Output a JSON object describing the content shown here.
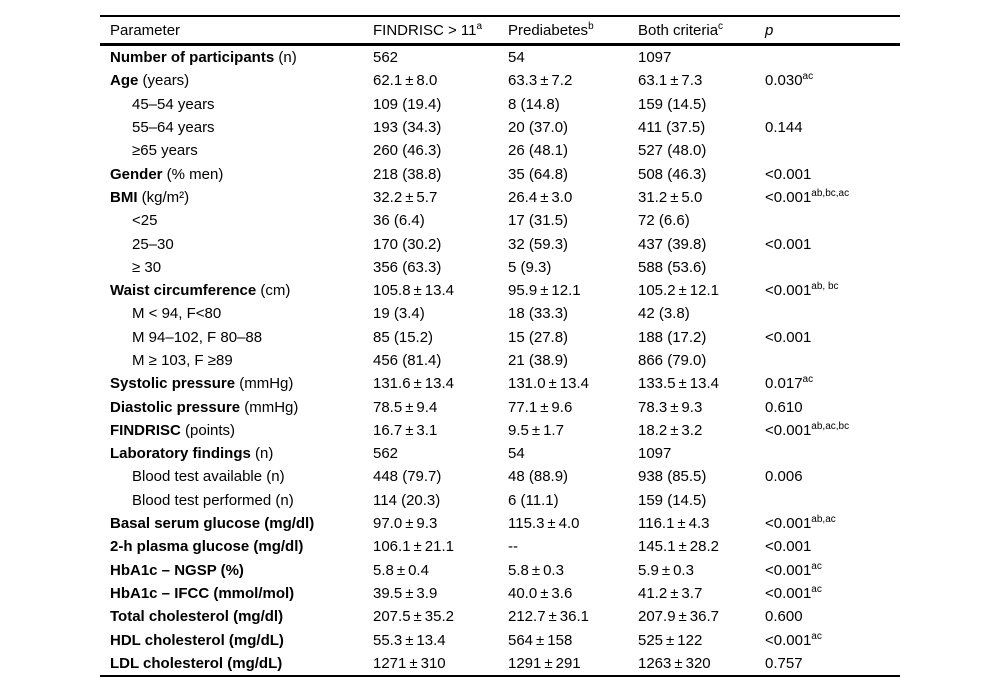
{
  "table": {
    "headers": [
      {
        "label": "Parameter",
        "sup": ""
      },
      {
        "label": "FINDRISC > 11",
        "sup": "a"
      },
      {
        "label": "Prediabetes",
        "sup": "b"
      },
      {
        "label": "Both criteria",
        "sup": "c"
      },
      {
        "label": "p",
        "sup": ""
      }
    ],
    "rows": [
      {
        "label_bold": "Number of participants",
        "label_rest": " (n)",
        "indent": false,
        "values": [
          "562",
          "54",
          "1097"
        ],
        "p": "",
        "p_sup": ""
      },
      {
        "label_bold": "Age",
        "label_rest": " (years)",
        "indent": false,
        "values": [
          "62.1 ± 8.0",
          "63.3 ± 7.2",
          "63.1 ± 7.3"
        ],
        "p": "0.030",
        "p_sup": "ac"
      },
      {
        "label_bold": "",
        "label_rest": "45–54 years",
        "indent": true,
        "values": [
          "109 (19.4)",
          "8 (14.8)",
          "159 (14.5)"
        ],
        "p": "",
        "p_sup": ""
      },
      {
        "label_bold": "",
        "label_rest": "55–64 years",
        "indent": true,
        "values": [
          "193 (34.3)",
          "20 (37.0)",
          "411 (37.5)"
        ],
        "p": "0.144",
        "p_sup": ""
      },
      {
        "label_bold": "",
        "label_rest": "≥65 years",
        "indent": true,
        "values": [
          "260 (46.3)",
          "26 (48.1)",
          "527 (48.0)"
        ],
        "p": "",
        "p_sup": ""
      },
      {
        "label_bold": "Gender",
        "label_rest": " (% men)",
        "indent": false,
        "values": [
          "218 (38.8)",
          "35 (64.8)",
          "508 (46.3)"
        ],
        "p": "<0.001",
        "p_sup": ""
      },
      {
        "label_bold": "BMI",
        "label_rest": " (kg/m²)",
        "indent": false,
        "values": [
          "32.2 ± 5.7",
          "26.4 ± 3.0",
          "31.2 ± 5.0"
        ],
        "p": "<0.001",
        "p_sup": "ab,bc,ac"
      },
      {
        "label_bold": "",
        "label_rest": "<25",
        "indent": true,
        "values": [
          "36 (6.4)",
          "17 (31.5)",
          "72 (6.6)"
        ],
        "p": "",
        "p_sup": ""
      },
      {
        "label_bold": "",
        "label_rest": "25–30",
        "indent": true,
        "values": [
          "170 (30.2)",
          "32 (59.3)",
          "437 (39.8)"
        ],
        "p": "<0.001",
        "p_sup": ""
      },
      {
        "label_bold": "",
        "label_rest": "≥ 30",
        "indent": true,
        "values": [
          "356 (63.3)",
          "5 (9.3)",
          "588 (53.6)"
        ],
        "p": "",
        "p_sup": ""
      },
      {
        "label_bold": "Waist circumference",
        "label_rest": " (cm)",
        "indent": false,
        "values": [
          "105.8 ± 13.4",
          "95.9 ± 12.1",
          "105.2 ± 12.1"
        ],
        "p": "<0.001",
        "p_sup": "ab, bc"
      },
      {
        "label_bold": "",
        "label_rest": "M < 94, F<80",
        "indent": true,
        "values": [
          "19 (3.4)",
          "18 (33.3)",
          "42 (3.8)"
        ],
        "p": "",
        "p_sup": ""
      },
      {
        "label_bold": "",
        "label_rest": "M 94–102, F 80–88",
        "indent": true,
        "values": [
          "85 (15.2)",
          "15 (27.8)",
          "188 (17.2)"
        ],
        "p": "<0.001",
        "p_sup": ""
      },
      {
        "label_bold": "",
        "label_rest": "M ≥ 103, F ≥89",
        "indent": true,
        "values": [
          "456 (81.4)",
          "21 (38.9)",
          "866 (79.0)"
        ],
        "p": "",
        "p_sup": ""
      },
      {
        "label_bold": "Systolic pressure",
        "label_rest": " (mmHg)",
        "indent": false,
        "values": [
          "131.6 ± 13.4",
          "131.0 ± 13.4",
          "133.5 ± 13.4"
        ],
        "p": "0.017",
        "p_sup": "ac"
      },
      {
        "label_bold": "Diastolic pressure",
        "label_rest": " (mmHg)",
        "indent": false,
        "values": [
          "78.5 ± 9.4",
          "77.1 ± 9.6",
          "78.3 ± 9.3"
        ],
        "p": "0.610",
        "p_sup": ""
      },
      {
        "label_bold": "FINDRISC",
        "label_rest": " (points)",
        "indent": false,
        "values": [
          "16.7 ± 3.1",
          "9.5 ± 1.7",
          "18.2 ± 3.2"
        ],
        "p": "<0.001",
        "p_sup": "ab,ac,bc"
      },
      {
        "label_bold": "Laboratory findings",
        "label_rest": " (n)",
        "indent": false,
        "values": [
          "562",
          "54",
          "1097"
        ],
        "p": "",
        "p_sup": ""
      },
      {
        "label_bold": "",
        "label_rest": "Blood test available (n)",
        "indent": true,
        "values": [
          "448 (79.7)",
          "48 (88.9)",
          "938 (85.5)"
        ],
        "p": "0.006",
        "p_sup": ""
      },
      {
        "label_bold": "",
        "label_rest": "Blood test performed (n)",
        "indent": true,
        "values": [
          "114 (20.3)",
          "6 (11.1)",
          "159 (14.5)"
        ],
        "p": "",
        "p_sup": ""
      },
      {
        "label_bold": "Basal serum glucose (mg/dl)",
        "label_rest": "",
        "indent": false,
        "values": [
          "97.0 ± 9.3",
          "115.3 ± 4.0",
          "116.1 ± 4.3"
        ],
        "p": "<0.001",
        "p_sup": "ab,ac"
      },
      {
        "label_bold": "2-h plasma glucose (mg/dl)",
        "label_rest": "",
        "indent": false,
        "values": [
          "106.1 ± 21.1",
          "--",
          "145.1 ± 28.2"
        ],
        "p": "<0.001",
        "p_sup": ""
      },
      {
        "label_bold": "HbA1c – NGSP (%)",
        "label_rest": "",
        "indent": false,
        "values": [
          "5.8 ± 0.4",
          "5.8 ± 0.3",
          "5.9 ± 0.3"
        ],
        "p": "<0.001",
        "p_sup": "ac"
      },
      {
        "label_bold": "HbA1c – IFCC (mmol/mol)",
        "label_rest": "",
        "indent": false,
        "values": [
          "39.5 ± 3.9",
          "40.0 ± 3.6",
          "41.2 ± 3.7"
        ],
        "p": "<0.001",
        "p_sup": "ac"
      },
      {
        "label_bold": "Total cholesterol (mg/dl)",
        "label_rest": "",
        "indent": false,
        "values": [
          "207.5 ± 35.2",
          "212.7 ± 36.1",
          "207.9 ± 36.7"
        ],
        "p": "0.600",
        "p_sup": ""
      },
      {
        "label_bold": "HDL cholesterol (mg/dL)",
        "label_rest": "",
        "indent": false,
        "values": [
          "55.3 ± 13.4",
          "564 ± 158",
          "525 ± 122"
        ],
        "p": "<0.001",
        "p_sup": "ac"
      },
      {
        "label_bold": "LDL cholesterol (mg/dL)",
        "label_rest": "",
        "indent": false,
        "values": [
          "1271 ± 310",
          "1291 ± 291",
          "1263 ± 320"
        ],
        "p": "0.757",
        "p_sup": ""
      }
    ]
  }
}
